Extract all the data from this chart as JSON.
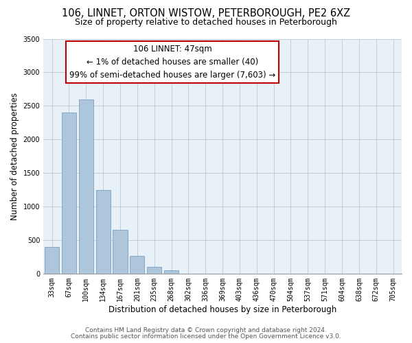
{
  "title": "106, LINNET, ORTON WISTOW, PETERBOROUGH, PE2 6XZ",
  "subtitle": "Size of property relative to detached houses in Peterborough",
  "xlabel": "Distribution of detached houses by size in Peterborough",
  "ylabel": "Number of detached properties",
  "categories": [
    "33sqm",
    "67sqm",
    "100sqm",
    "134sqm",
    "167sqm",
    "201sqm",
    "235sqm",
    "268sqm",
    "302sqm",
    "336sqm",
    "369sqm",
    "403sqm",
    "436sqm",
    "470sqm",
    "504sqm",
    "537sqm",
    "571sqm",
    "604sqm",
    "638sqm",
    "672sqm",
    "705sqm"
  ],
  "values": [
    400,
    2400,
    2600,
    1250,
    650,
    260,
    100,
    50,
    0,
    0,
    0,
    0,
    0,
    0,
    0,
    0,
    0,
    0,
    0,
    0,
    0
  ],
  "bar_color": "#aec6dc",
  "highlight_bar_color": "#c00000",
  "annotation_line1": "106 LINNET: 47sqm",
  "annotation_line2": "← 1% of detached houses are smaller (40)",
  "annotation_line3": "99% of semi-detached houses are larger (7,603) →",
  "annotation_box_color": "#ffffff",
  "annotation_box_edge_color": "#c00000",
  "ylim": [
    0,
    3500
  ],
  "yticks": [
    0,
    500,
    1000,
    1500,
    2000,
    2500,
    3000,
    3500
  ],
  "footer_line1": "Contains HM Land Registry data © Crown copyright and database right 2024.",
  "footer_line2": "Contains public sector information licensed under the Open Government Licence v3.0.",
  "bg_color": "#ffffff",
  "plot_bg_color": "#e8f0f8",
  "grid_color": "#c0ced8",
  "title_fontsize": 10.5,
  "subtitle_fontsize": 9,
  "axis_label_fontsize": 8.5,
  "tick_fontsize": 7,
  "annotation_fontsize": 8.5,
  "footer_fontsize": 6.5
}
